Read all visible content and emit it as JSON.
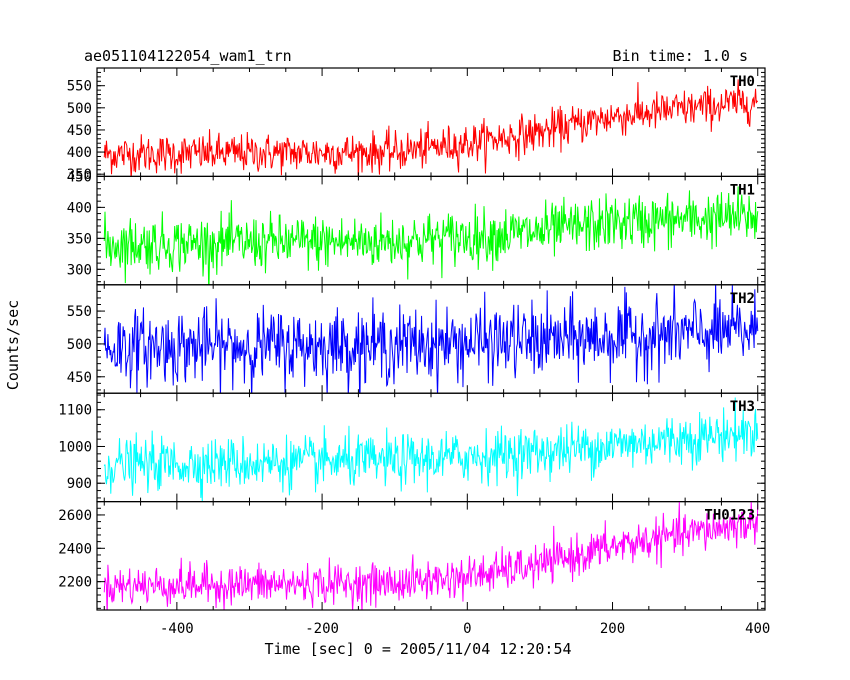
{
  "header": {
    "title": "ae051104122054_wam1_trn",
    "bin_time": "Bin time: 1.0 s"
  },
  "chart_data": {
    "type": "line",
    "xlabel": "Time [sec] 0 = 2005/11/04 12:20:54",
    "ylabel": "Counts/sec",
    "xlim": [
      -510,
      410
    ],
    "xticks": [
      -400,
      -200,
      0,
      200,
      400
    ],
    "bin_time_s": 1.0,
    "grid": false,
    "series": [
      {
        "name": "TH0",
        "color": "#ff0000",
        "ylim": [
          345,
          590
        ],
        "yticks": [
          350,
          400,
          450,
          500,
          550
        ],
        "trend": [
          [
            -500,
            395
          ],
          [
            -100,
            400
          ],
          [
            0,
            420
          ],
          [
            100,
            445
          ],
          [
            200,
            480
          ],
          [
            400,
            515
          ]
        ],
        "noise_sd": 22
      },
      {
        "name": "TH1",
        "color": "#00ff00",
        "ylim": [
          275,
          450
        ],
        "yticks": [
          300,
          350,
          400,
          450
        ],
        "trend": [
          [
            -500,
            340
          ],
          [
            -100,
            345
          ],
          [
            100,
            360
          ],
          [
            200,
            375
          ],
          [
            400,
            385
          ]
        ],
        "noise_sd": 22
      },
      {
        "name": "TH2",
        "color": "#0000ff",
        "ylim": [
          425,
          590
        ],
        "yticks": [
          450,
          500,
          550
        ],
        "trend": [
          [
            -500,
            495
          ],
          [
            -100,
            498
          ],
          [
            100,
            505
          ],
          [
            400,
            520
          ]
        ],
        "noise_sd": 28
      },
      {
        "name": "TH3",
        "color": "#00ffff",
        "ylim": [
          850,
          1145
        ],
        "yticks": [
          900,
          1000,
          1100
        ],
        "trend": [
          [
            -500,
            950
          ],
          [
            -100,
            960
          ],
          [
            100,
            985
          ],
          [
            400,
            1040
          ]
        ],
        "noise_sd": 35
      },
      {
        "name": "TH0123",
        "color": "#ff00ff",
        "ylim": [
          2030,
          2680
        ],
        "yticks": [
          2200,
          2400,
          2600
        ],
        "trend": [
          [
            -500,
            2175
          ],
          [
            -100,
            2190
          ],
          [
            0,
            2230
          ],
          [
            100,
            2300
          ],
          [
            200,
            2410
          ],
          [
            400,
            2560
          ]
        ],
        "noise_sd": 60
      }
    ]
  }
}
